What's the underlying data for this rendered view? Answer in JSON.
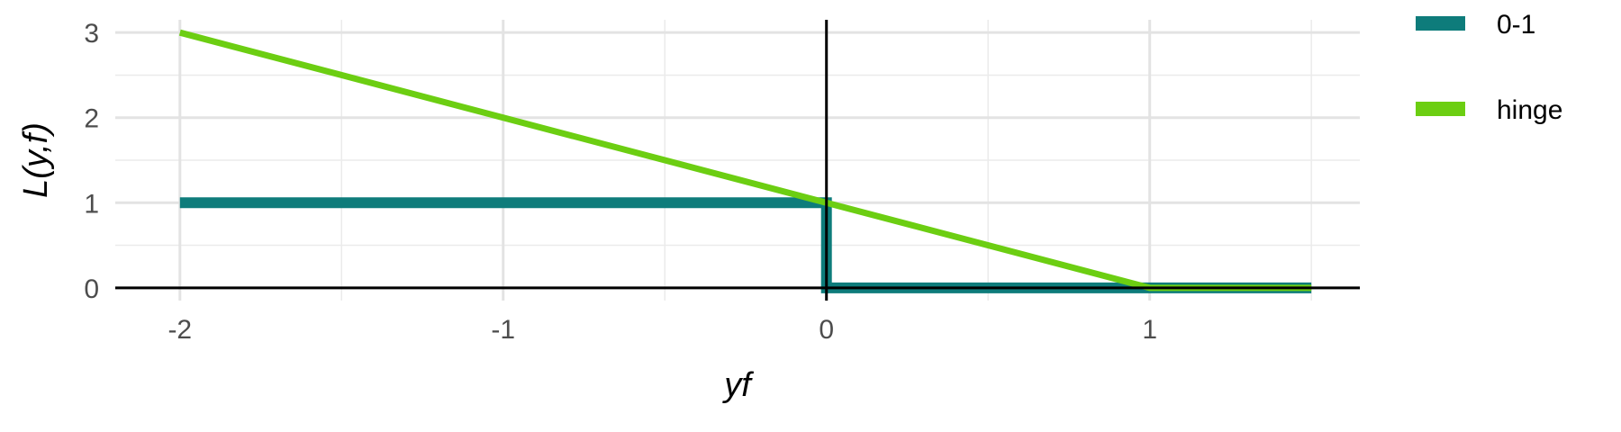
{
  "chart_data": {
    "type": "line",
    "title": "",
    "xlabel": "yf",
    "ylabel": "L(y,f)",
    "xlim": [
      -2.2,
      1.65
    ],
    "ylim": [
      -0.15,
      3.15
    ],
    "x_ticks": [
      -2,
      -1,
      0,
      1
    ],
    "x_tick_labels": [
      "-2",
      "-1",
      "0",
      "1"
    ],
    "y_ticks": [
      0,
      1,
      2,
      3
    ],
    "y_tick_labels": [
      "0",
      "1",
      "2",
      "3"
    ],
    "x_minor_ticks": [
      -1.5,
      -0.5,
      0.5,
      1.5
    ],
    "y_minor_ticks": [
      0.5,
      1.5,
      2.5
    ],
    "grid": true,
    "reference_lines": {
      "x": 0,
      "y": 0,
      "color": "#000000"
    },
    "legend_position": "right-top",
    "series": [
      {
        "name": "0-1",
        "color": "#0E7C7B",
        "x": [
          -2,
          0,
          0,
          1.5
        ],
        "y": [
          1,
          1,
          0,
          0
        ]
      },
      {
        "name": "hinge",
        "color": "#6CCE12",
        "x": [
          -2,
          1,
          1.5
        ],
        "y": [
          3,
          0,
          0
        ]
      }
    ]
  }
}
